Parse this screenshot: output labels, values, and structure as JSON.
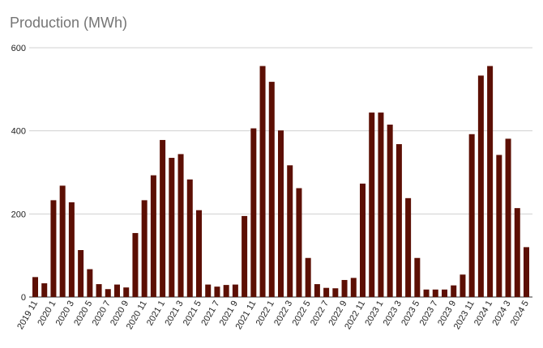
{
  "chart_data": {
    "type": "bar",
    "title": "Production (MWh)",
    "xlabel": "",
    "ylabel": "",
    "ylim": [
      0,
      600
    ],
    "yticks": [
      0,
      200,
      400,
      600
    ],
    "grid": true,
    "bar_color": "#5c0f04",
    "categories": [
      "2019 11",
      "2019 12",
      "2020 1",
      "2020 2",
      "2020 3",
      "2020 4",
      "2020 5",
      "2020 6",
      "2020 7",
      "2020 8",
      "2020 9",
      "2020 10",
      "2020 11",
      "2020 12",
      "2021 1",
      "2021 2",
      "2021 3",
      "2021 4",
      "2021 5",
      "2021 6",
      "2021 7",
      "2021 8",
      "2021 9",
      "2021 10",
      "2021 11",
      "2021 12",
      "2022 1",
      "2022 2",
      "2022 3",
      "2022 4",
      "2022 5",
      "2022 6",
      "2022 7",
      "2022 8",
      "2022 9",
      "2022 10",
      "2022 11",
      "2022 12",
      "2023 1",
      "2023 2",
      "2023 3",
      "2023 4",
      "2023 5",
      "2023 6",
      "2023 7",
      "2023 8",
      "2023 9",
      "2023 10",
      "2023 11",
      "2023 12",
      "2024 1",
      "2024 2",
      "2024 3",
      "2024 4",
      "2024 5"
    ],
    "values": [
      48,
      33,
      233,
      268,
      228,
      113,
      67,
      31,
      19,
      30,
      23,
      154,
      233,
      293,
      378,
      335,
      344,
      283,
      209,
      30,
      25,
      29,
      30,
      195,
      406,
      556,
      518,
      401,
      317,
      262,
      94,
      31,
      22,
      21,
      41,
      46,
      273,
      444,
      444,
      415,
      368,
      238,
      94,
      18,
      18,
      18,
      28,
      54,
      392,
      533,
      556,
      342,
      381,
      214,
      120
    ],
    "x_tick_labels_shown_every": 2
  }
}
